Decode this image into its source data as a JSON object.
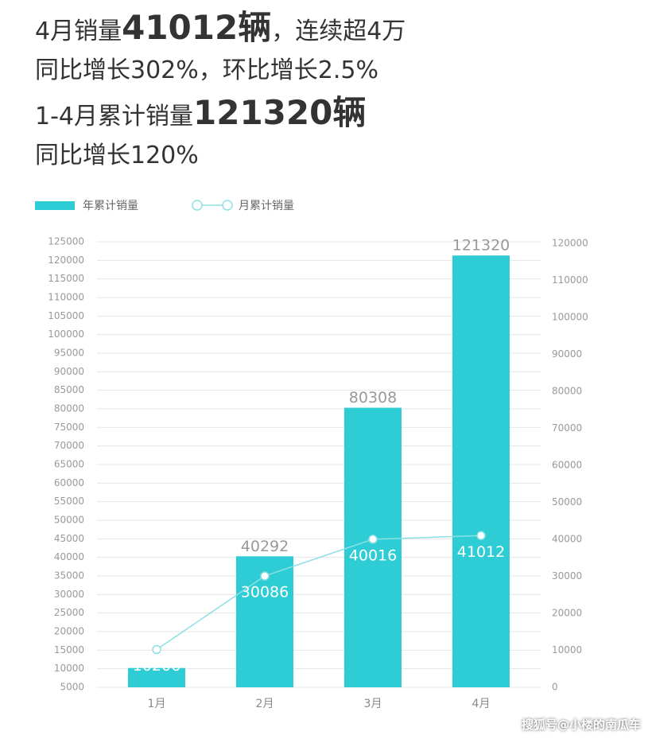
{
  "headline": [
    [
      {
        "text": "4月销量"
      },
      {
        "text": "41012辆",
        "bold": true
      },
      {
        "text": "，连续超4万"
      }
    ],
    [
      {
        "text": "同比增长302%，环比增长2.5%"
      }
    ],
    [
      {
        "text": "1-4月累计销量"
      },
      {
        "text": "121320辆",
        "bold": true
      }
    ],
    [
      {
        "text": "同比增长120%"
      }
    ]
  ],
  "watermark": "搜狐号@小楼的南瓜车",
  "chart_data": {
    "type": "bar-line",
    "categories": [
      "1月",
      "2月",
      "3月",
      "4月"
    ],
    "series": [
      {
        "name": "年累计销量",
        "type": "bar",
        "color": "#2ecdd5",
        "values": [
          10206,
          40292,
          80308,
          121320
        ]
      },
      {
        "name": "月累计销量",
        "type": "line",
        "axis": "y2",
        "color": "#8ce0e4",
        "values": [
          10206,
          30086,
          40016,
          41012
        ]
      }
    ],
    "ylim": [
      5000,
      125000
    ],
    "yticks": [
      5000,
      10000,
      15000,
      20000,
      25000,
      30000,
      35000,
      40000,
      45000,
      50000,
      55000,
      60000,
      65000,
      70000,
      75000,
      80000,
      85000,
      90000,
      95000,
      100000,
      105000,
      110000,
      115000,
      120000,
      125000
    ],
    "y2lim": [
      0,
      120000
    ],
    "y2ticks": [
      0,
      10000,
      20000,
      30000,
      40000,
      50000,
      60000,
      70000,
      80000,
      90000,
      100000,
      110000,
      120000
    ],
    "grid": true
  }
}
